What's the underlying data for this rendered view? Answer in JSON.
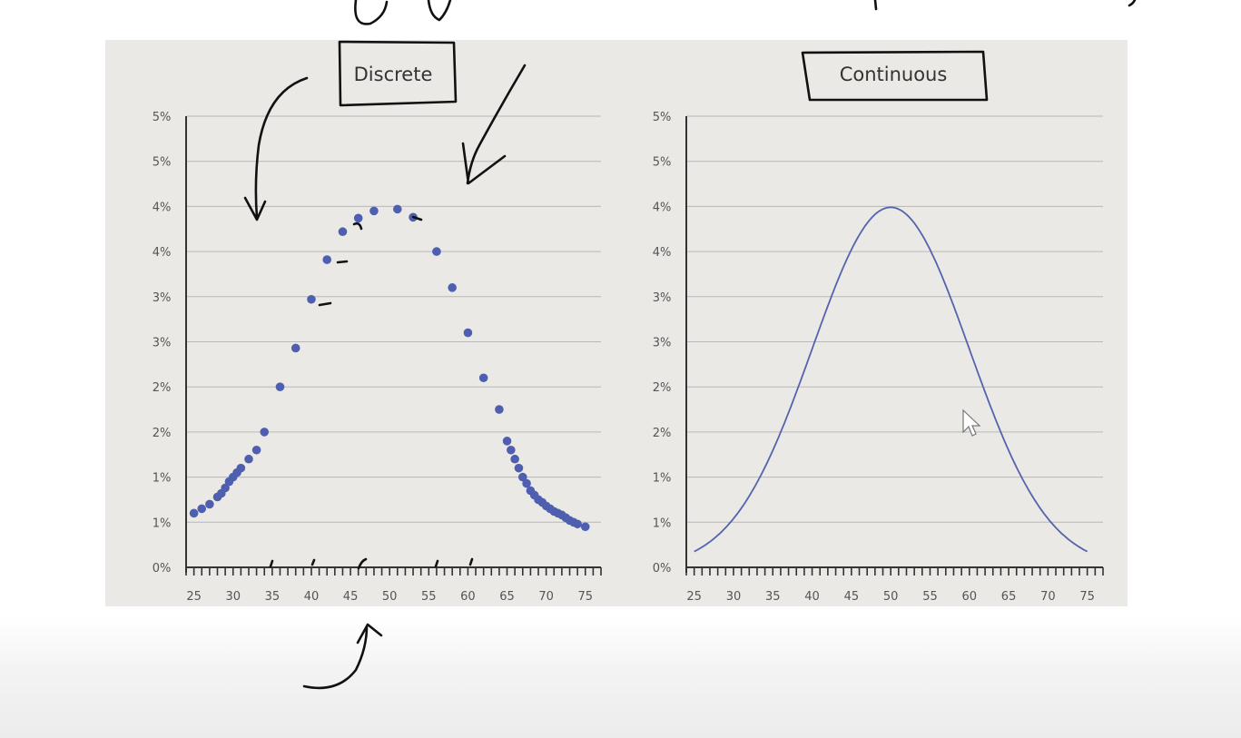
{
  "colors": {
    "panel_background": "#ebe9e5",
    "marker": "#4f5fb0",
    "curve": "#5563ad",
    "grid": "#b8b8b8",
    "ink": "#111111"
  },
  "chart_data": [
    {
      "type": "scatter",
      "title": "Discrete",
      "x": [
        25,
        26,
        27,
        28,
        28.5,
        29,
        29.5,
        30,
        30.5,
        31,
        32,
        33,
        34,
        36,
        38,
        40,
        42,
        44,
        46,
        48,
        51,
        53,
        56,
        58,
        60,
        62,
        64,
        65,
        65.5,
        66,
        66.5,
        67,
        67.5,
        68,
        68.5,
        69,
        69.5,
        70,
        70.5,
        71,
        71.5,
        72,
        72.5,
        73,
        73.5,
        74,
        75
      ],
      "y": [
        0.6,
        0.65,
        0.7,
        0.78,
        0.82,
        0.88,
        0.95,
        1.0,
        1.05,
        1.1,
        1.2,
        1.3,
        1.5,
        2.0,
        2.43,
        2.97,
        3.41,
        3.72,
        3.87,
        3.95,
        3.97,
        3.88,
        3.5,
        3.1,
        2.6,
        2.1,
        1.75,
        1.4,
        1.3,
        1.2,
        1.1,
        1.0,
        0.93,
        0.85,
        0.8,
        0.75,
        0.72,
        0.68,
        0.65,
        0.62,
        0.6,
        0.58,
        0.55,
        0.52,
        0.5,
        0.48,
        0.45
      ],
      "x_ticks": [
        "25",
        "30",
        "35",
        "40",
        "45",
        "50",
        "55",
        "60",
        "65",
        "70",
        "75"
      ],
      "y_ticks": [
        "0%",
        "1%",
        "1%",
        "2%",
        "2%",
        "3%",
        "3%",
        "4%",
        "4%",
        "5%",
        "5%"
      ],
      "xlim": [
        24,
        77
      ],
      "ylim": [
        0,
        5
      ],
      "grid": true
    },
    {
      "type": "line",
      "title": "Continuous",
      "curve": {
        "mean": 50,
        "sd": 10,
        "peak": 3.99
      },
      "x_ticks": [
        "25",
        "30",
        "35",
        "40",
        "45",
        "50",
        "55",
        "60",
        "65",
        "70",
        "75"
      ],
      "y_ticks": [
        "0%",
        "1%",
        "1%",
        "2%",
        "2%",
        "3%",
        "3%",
        "4%",
        "4%",
        "5%",
        "5%"
      ],
      "xlim": [
        24,
        77
      ],
      "ylim": [
        0,
        5
      ],
      "grid": true
    }
  ]
}
